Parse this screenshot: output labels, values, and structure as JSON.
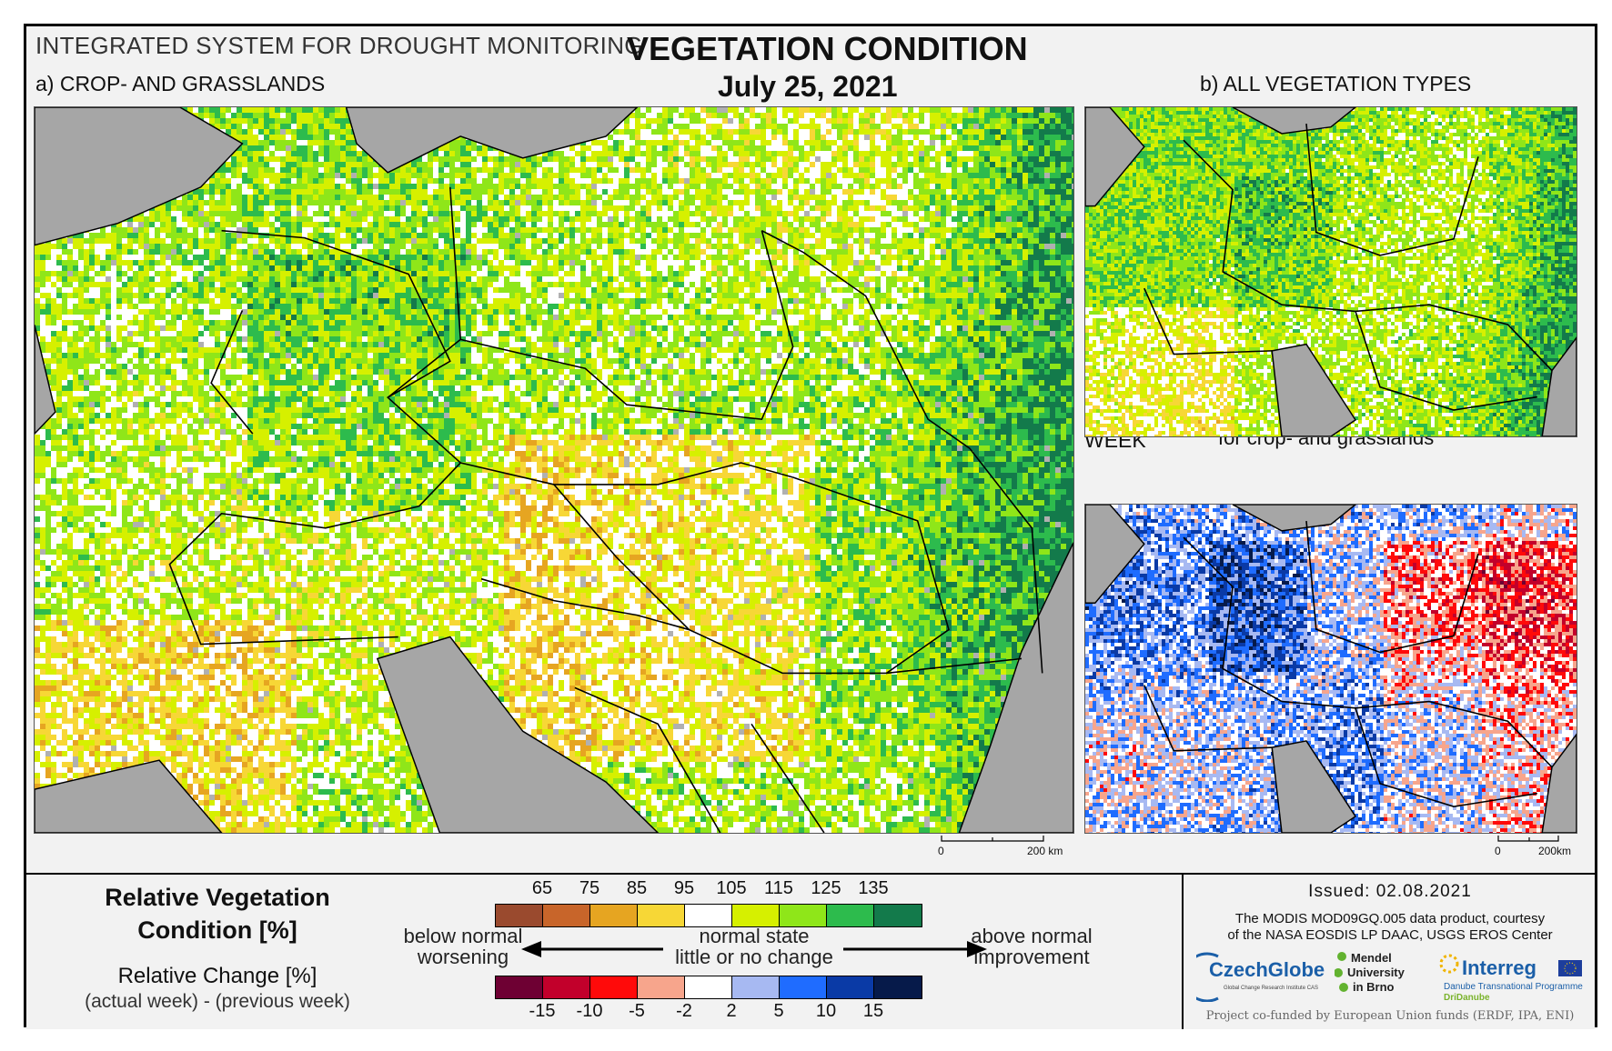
{
  "header": {
    "system_title": "INTEGRATED SYSTEM FOR DROUGHT MONITORING",
    "main_title": "VEGETATION CONDITION",
    "date": "July 25, 2021"
  },
  "panels": {
    "a_label": "a) CROP- AND GRASSLANDS",
    "b_label": "b) ALL VEGETATION TYPES",
    "c_label": "c) CHANGE COMPARED WITH THE PREVIOUS WEEK",
    "c_sublabel": "for crop- and grasslands"
  },
  "scalebars": {
    "a": {
      "zero": "0",
      "value": "200 km"
    },
    "c": {
      "zero": "0",
      "value": "200km"
    }
  },
  "legend": {
    "condition_title_line1": "Relative Vegetation",
    "condition_title_line2": "Condition [%]",
    "change_title": "Relative Change [%]",
    "change_formula": "(actual week) - (previous week)",
    "condition_ticks": [
      "65",
      "75",
      "85",
      "95",
      "105",
      "115",
      "125",
      "135"
    ],
    "condition_colors": [
      "#9a4a2e",
      "#c8652a",
      "#e6a521",
      "#f7d736",
      "#ffffff",
      "#d6f000",
      "#8fe619",
      "#2dbb4d",
      "#137a4b"
    ],
    "change_ticks": [
      "-15",
      "-10",
      "-5",
      "-2",
      "2",
      "5",
      "10",
      "15"
    ],
    "change_colors": [
      "#6e0033",
      "#c2002b",
      "#ff0a0a",
      "#f7a58c",
      "#ffffff",
      "#a7b9f2",
      "#1f6cff",
      "#0a3aa6",
      "#061a4a"
    ],
    "left_text_line1": "below normal",
    "left_text_line2": "worsening",
    "middle_text_line1": "normal state",
    "middle_text_line2": "little or no change",
    "right_text_line1": "above normal",
    "right_text_line2": "improvement"
  },
  "credits": {
    "issued": "Issued: 02.08.2021",
    "courtesy_line1": "The MODIS MOD09GQ.005 data product, courtesy",
    "courtesy_line2": "of the NASA EOSDIS LP DAAC, USGS EROS Center",
    "czechglobe": "CzechGlobe",
    "czechglobe_sub": "Global Change Research Institute CAS",
    "mendel_line1": "Mendel",
    "mendel_line2": "University",
    "mendel_line3": "in Brno",
    "interreg": "Interreg",
    "interreg_sub1": "Danube Transnational Programme",
    "interreg_sub2": "DriDanube",
    "funded": "Project co-funded by European Union funds (ERDF, IPA, ENI)"
  }
}
